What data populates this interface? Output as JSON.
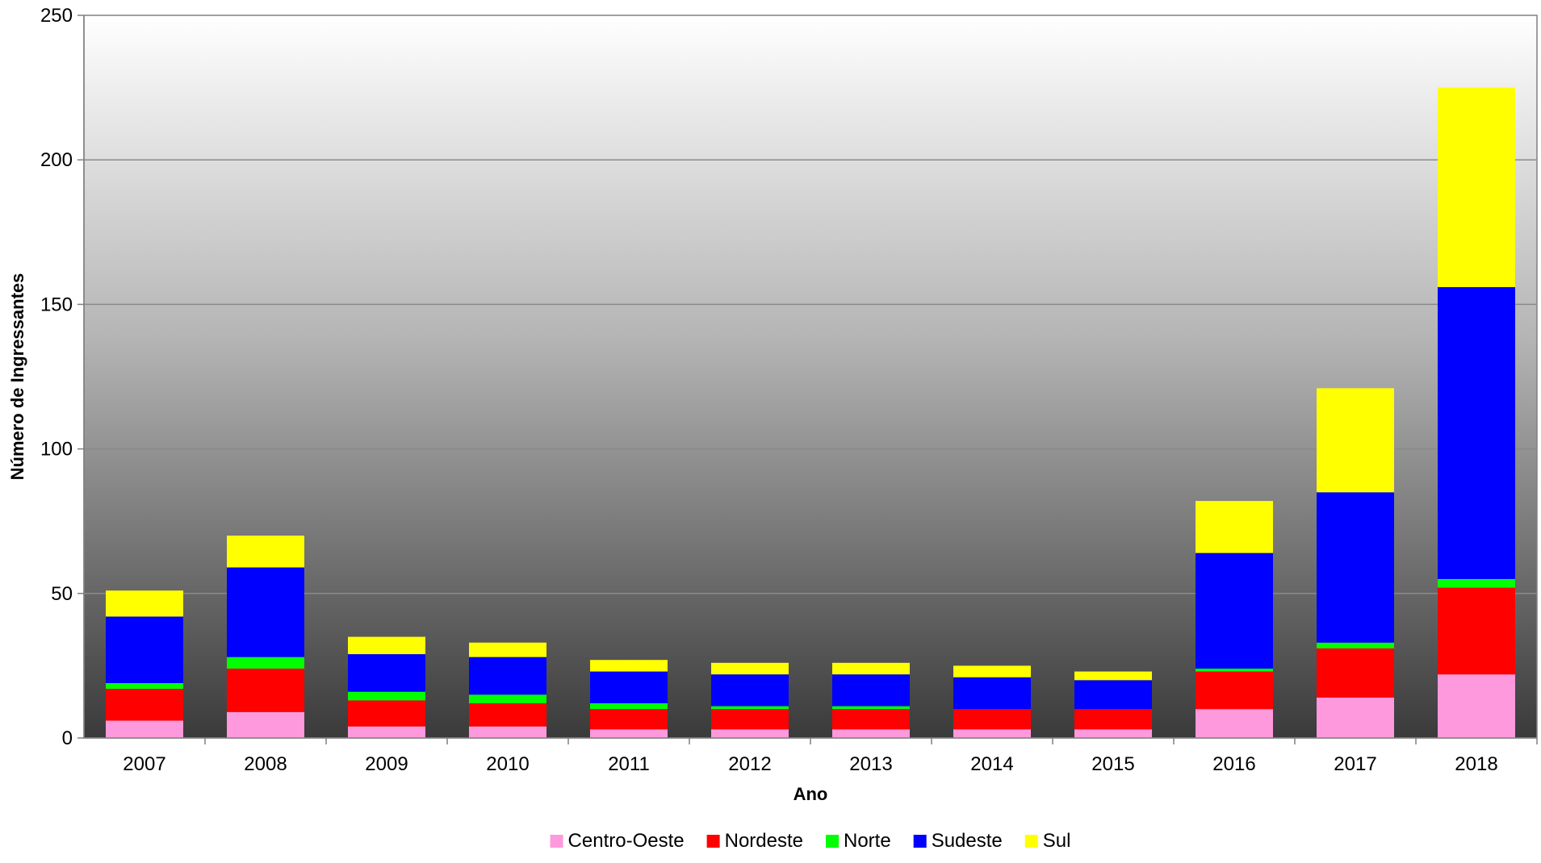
{
  "chart_data": {
    "type": "bar",
    "stacked": true,
    "title": "",
    "xlabel": "Ano",
    "ylabel": "Número de Ingressantes",
    "ylim": [
      0,
      250
    ],
    "yticks": [
      0,
      50,
      100,
      150,
      200,
      250
    ],
    "grid": true,
    "legend_position": "bottom",
    "categories": [
      "2007",
      "2008",
      "2009",
      "2010",
      "2011",
      "2012",
      "2013",
      "2014",
      "2015",
      "2016",
      "2017",
      "2018"
    ],
    "series": [
      {
        "name": "Centro-Oeste",
        "color": "#FF99DD",
        "values": [
          6,
          9,
          4,
          4,
          3,
          3,
          3,
          3,
          3,
          10,
          14,
          22
        ]
      },
      {
        "name": "Nordeste",
        "color": "#FF0000",
        "values": [
          11,
          15,
          9,
          8,
          7,
          7,
          7,
          7,
          7,
          13,
          17,
          30
        ]
      },
      {
        "name": "Norte",
        "color": "#00FF00",
        "values": [
          2,
          4,
          3,
          3,
          2,
          1,
          1,
          0,
          0,
          1,
          2,
          3
        ]
      },
      {
        "name": "Sudeste",
        "color": "#0000FF",
        "values": [
          23,
          31,
          13,
          13,
          11,
          11,
          11,
          11,
          10,
          40,
          52,
          101
        ]
      },
      {
        "name": "Sul",
        "color": "#FFFF00",
        "values": [
          9,
          11,
          6,
          5,
          4,
          4,
          4,
          4,
          3,
          18,
          36,
          69
        ]
      }
    ]
  }
}
